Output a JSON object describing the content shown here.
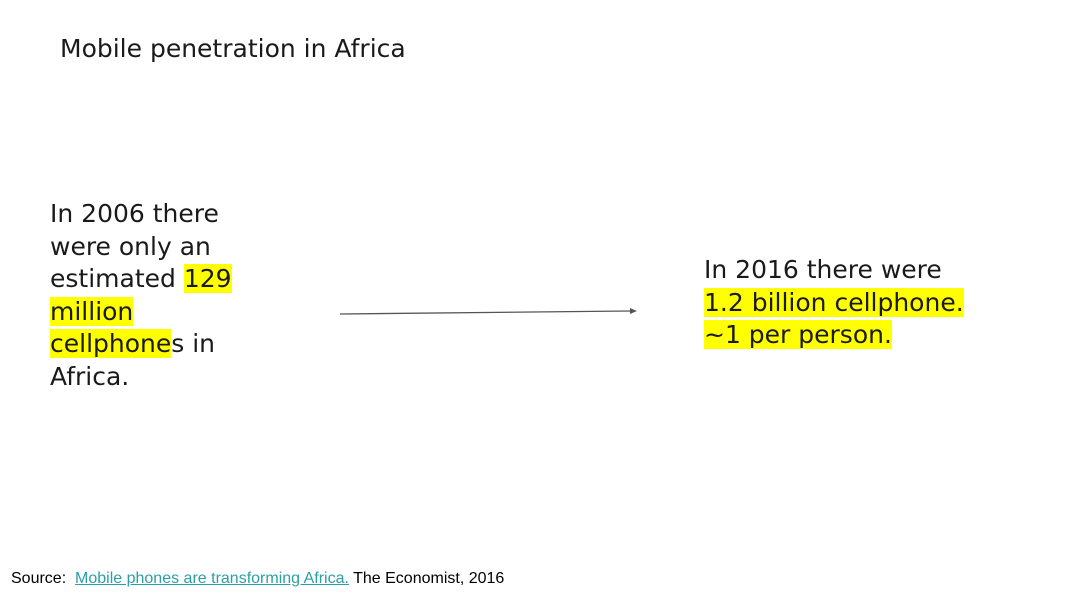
{
  "slide": {
    "title": "Mobile penetration in Africa",
    "left": {
      "text_before": "In 2006 there were only an estimated ",
      "highlight": "129 million cellphone",
      "text_after": "s in Africa."
    },
    "right": {
      "text_before": "In 2016 there were ",
      "highlight_line1": "1.2 billion cellphone.",
      "highlight_line2": "~1 per person."
    },
    "source": {
      "prefix": "Source:",
      "link_text": "Mobile phones are transforming Africa.",
      "suffix": " The Economist, 2016"
    },
    "colors": {
      "highlight": "#ffff00",
      "link": "#2a9fa8",
      "arrow": "#555555"
    }
  }
}
